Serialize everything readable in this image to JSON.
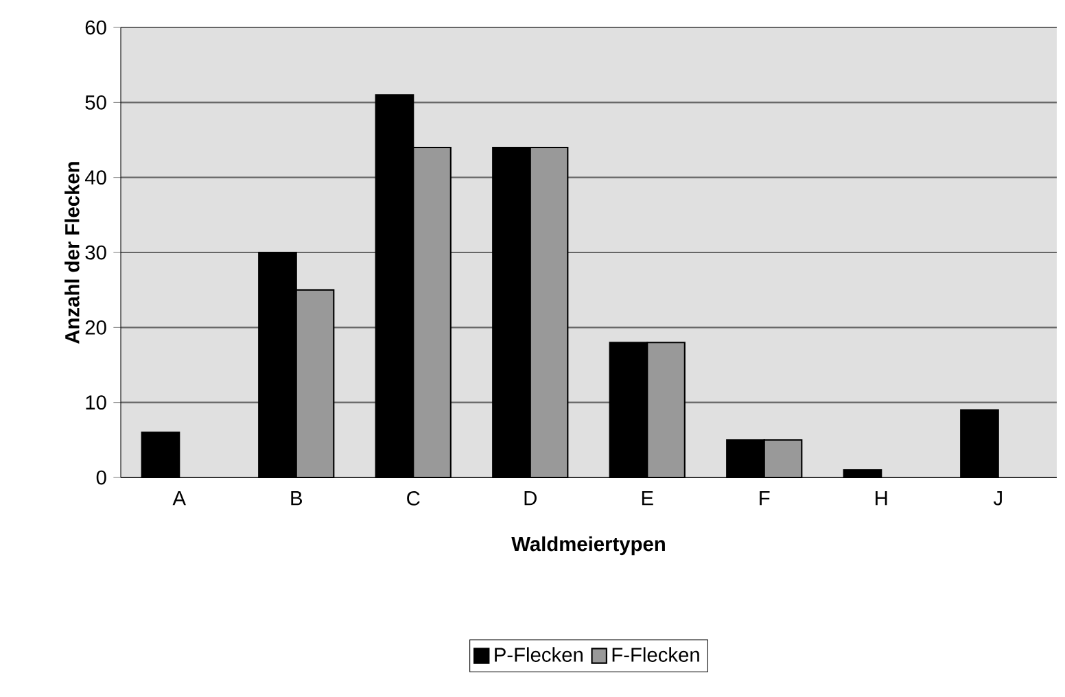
{
  "chart_data": {
    "type": "bar",
    "xlabel": "Waldmeiertypen",
    "ylabel": "Anzahl der Flecken",
    "categories": [
      "A",
      "B",
      "C",
      "D",
      "E",
      "F",
      "H",
      "J"
    ],
    "series": [
      {
        "name": "P-Flecken",
        "color": "#000000",
        "values": [
          6,
          30,
          51,
          44,
          18,
          5,
          1,
          9
        ]
      },
      {
        "name": "F-Flecken",
        "color": "#999999",
        "values": [
          null,
          25,
          44,
          44,
          18,
          5,
          null,
          null
        ]
      }
    ],
    "ylim": [
      0,
      60
    ],
    "yticks": [
      0,
      10,
      20,
      30,
      40,
      50,
      60
    ],
    "grid": "y",
    "legend": "bottom"
  }
}
